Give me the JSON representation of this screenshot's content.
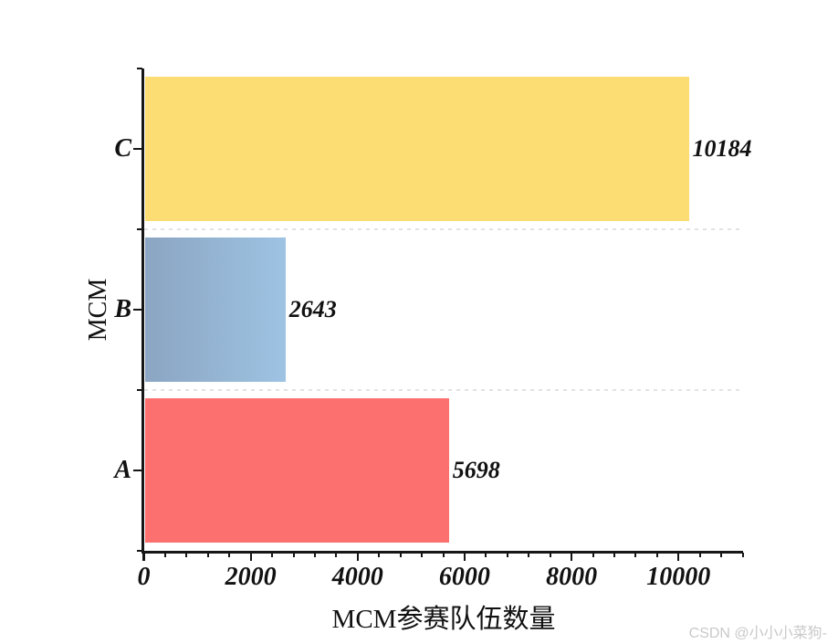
{
  "chart_data": {
    "type": "bar",
    "orientation": "horizontal",
    "title": "",
    "xlabel": "MCM参赛队伍数量",
    "ylabel": "MCM",
    "xlim": [
      0,
      11200
    ],
    "xticks": [
      0,
      2000,
      4000,
      6000,
      8000,
      10000
    ],
    "xtick_labels": [
      "0",
      "2000",
      "4000",
      "6000",
      "8000",
      "10000"
    ],
    "minor_tick_interval": 400,
    "grid": "dotted category separators",
    "grid_color": "#e2e2e2",
    "axis_color": "#161616",
    "bars": [
      {
        "category": "C",
        "value": 10184,
        "value_label": "10184",
        "color": "#fcdd73",
        "color2": "#fcdd73"
      },
      {
        "category": "B",
        "value": 2643,
        "value_label": "2643",
        "color": "#8ba5c2",
        "color2": "#9ec3e3"
      },
      {
        "category": "A",
        "value": 5698,
        "value_label": "5698",
        "color": "#fc7170",
        "color2": "#fc7170"
      }
    ]
  },
  "watermark": {
    "text": "CSDN @小小小菜狗-"
  }
}
